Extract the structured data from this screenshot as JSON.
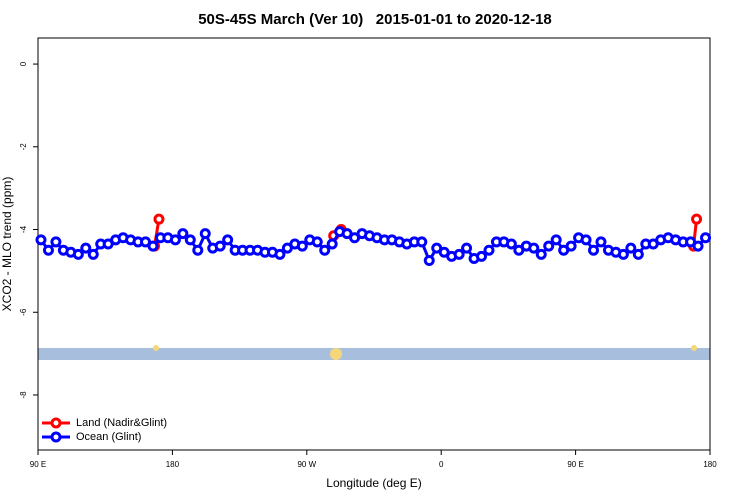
{
  "chart_data": {
    "type": "line",
    "title": "50S-45S March (Ver 10)   2015-01-01 to 2020-12-18",
    "x_label": "Longitude (deg E)",
    "y_label": "XCO2 - MLO trend (ppm)",
    "xlim": [
      90,
      540
    ],
    "xticks": [
      {
        "value": 90,
        "label": "90 E"
      },
      180,
      {
        "value": 270,
        "label": "90 W"
      },
      {
        "value": 360,
        "label": "0"
      },
      {
        "value": 450,
        "label": "90 E"
      },
      {
        "value": 540,
        "label": "180"
      }
    ],
    "ylim": [
      -9.33,
      0.63
    ],
    "yticks": [
      0,
      -2,
      -4,
      -6,
      -8
    ],
    "legend": "bottom-left",
    "series": [
      {
        "name": "Land (Nadir&Glint)",
        "color": "#ff0000",
        "x": [
          168,
          171,
          230,
          288,
          293,
          410,
          529,
          531
        ],
        "values": [
          -4.4,
          -3.75,
          null,
          -4.15,
          -4.0,
          null,
          -4.4,
          -3.75
        ]
      },
      {
        "name": "Ocean (Glint)",
        "color": "#0000ff",
        "x": [
          92,
          97,
          102,
          107,
          112,
          117,
          122,
          127,
          132,
          137,
          142,
          147,
          152,
          157,
          162,
          167,
          172,
          177,
          182,
          187,
          192,
          197,
          202,
          207,
          212,
          217,
          222,
          227,
          232,
          237,
          242,
          247,
          252,
          257,
          262,
          267,
          272,
          277,
          282,
          287,
          292,
          297,
          302,
          307,
          312,
          317,
          322,
          327,
          332,
          337,
          342,
          347,
          352,
          357,
          362,
          367,
          372,
          377,
          382,
          387,
          392,
          397,
          402,
          407,
          412,
          417,
          422,
          427,
          432,
          437,
          442,
          447,
          452,
          457,
          462,
          467,
          472,
          477,
          482,
          487,
          492,
          497,
          502,
          507,
          512,
          517,
          522,
          527,
          532,
          537
        ],
        "values": [
          -4.25,
          -4.5,
          -4.3,
          -4.5,
          -4.55,
          -4.6,
          -4.45,
          -4.6,
          -4.35,
          -4.35,
          -4.25,
          -4.2,
          -4.25,
          -4.3,
          -4.3,
          -4.4,
          -4.2,
          -4.2,
          -4.25,
          -4.1,
          -4.25,
          -4.5,
          -4.1,
          -4.45,
          -4.4,
          -4.25,
          -4.5,
          -4.5,
          -4.5,
          -4.5,
          -4.55,
          -4.55,
          -4.6,
          -4.45,
          -4.35,
          -4.4,
          -4.25,
          -4.3,
          -4.5,
          -4.35,
          -4.05,
          -4.1,
          -4.2,
          -4.1,
          -4.15,
          -4.2,
          -4.25,
          -4.25,
          -4.3,
          -4.35,
          -4.3,
          -4.3,
          -4.75,
          -4.45,
          -4.55,
          -4.65,
          -4.6,
          -4.45,
          -4.7,
          -4.65,
          -4.5,
          -4.3,
          -4.3,
          -4.35,
          -4.5,
          -4.4,
          -4.45,
          -4.6,
          -4.4,
          -4.25,
          -4.5,
          -4.4,
          -4.2,
          -4.25,
          -4.5,
          -4.3,
          -4.5,
          -4.55,
          -4.6,
          -4.45,
          -4.6,
          -4.35,
          -4.35,
          -4.25,
          -4.2,
          -4.25,
          -4.3,
          -4.3,
          -4.4,
          -4.2
        ]
      }
    ]
  }
}
